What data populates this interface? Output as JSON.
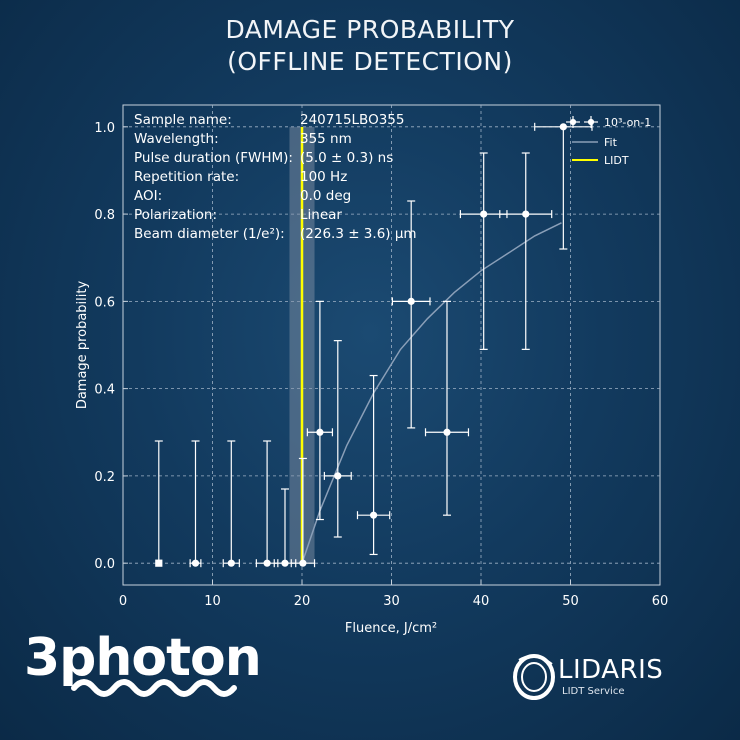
{
  "title_lines": [
    "DAMAGE PROBABILITY",
    "(OFFLINE DETECTION)"
  ],
  "info": [
    {
      "label": "Sample name:",
      "value": "240715LBO355"
    },
    {
      "label": "Wavelength:",
      "value": "355 nm"
    },
    {
      "label": "Pulse duration (FWHM):",
      "value": "(5.0 ± 0.3) ns"
    },
    {
      "label": "Repetition rate:",
      "value": "100 Hz"
    },
    {
      "label": "AOI:",
      "value": "0.0 deg"
    },
    {
      "label": "Polarization:",
      "value": "Linear"
    },
    {
      "label": "Beam diameter (1/e²):",
      "value": "(226.3 ± 3.6) µm"
    }
  ],
  "legend": {
    "points": "10³-on-1",
    "fit": "Fit",
    "lidt": "LIDT"
  },
  "colors": {
    "lidt": "#ffff00",
    "fit": "#8a9fb8",
    "points": "#ffffff",
    "lidt_band": "#8a97ab"
  },
  "logos": {
    "left": "3photon",
    "right_name": "LIDARIS",
    "right_sub": "LIDT Service"
  },
  "chart_data": {
    "type": "scatter",
    "xlabel": "Fluence, J/cm²",
    "ylabel": "Damage probability",
    "xlim": [
      0,
      60
    ],
    "ylim": [
      -0.05,
      1.05
    ],
    "xticks": [
      0,
      10,
      20,
      30,
      40,
      50,
      60
    ],
    "yticks": [
      "0.0",
      "0.2",
      "0.4",
      "0.6",
      "0.8",
      "1.0"
    ],
    "grid": true,
    "legend_position": "top-right",
    "series": [
      {
        "name": "10³-on-1",
        "points": [
          {
            "x": 4.0,
            "y": 0.0,
            "xerr": 0,
            "yerr_low": 0.0,
            "yerr_high": 0.28
          },
          {
            "x": 8.1,
            "y": 0.0,
            "xerr": 0.6,
            "yerr_low": 0.0,
            "yerr_high": 0.28
          },
          {
            "x": 12.1,
            "y": 0.0,
            "xerr": 0.9,
            "yerr_low": 0.0,
            "yerr_high": 0.28
          },
          {
            "x": 16.1,
            "y": 0.0,
            "xerr": 1.2,
            "yerr_low": 0.0,
            "yerr_high": 0.28
          },
          {
            "x": 18.1,
            "y": 0.0,
            "xerr": 1.2,
            "yerr_low": 0.0,
            "yerr_high": 0.17
          },
          {
            "x": 20.1,
            "y": 0.0,
            "xerr": 1.3,
            "yerr_low": 0.0,
            "yerr_high": 0.24
          },
          {
            "x": 22.0,
            "y": 0.3,
            "xerr": 1.4,
            "yerr_low": 0.2,
            "yerr_high": 0.3
          },
          {
            "x": 24.0,
            "y": 0.2,
            "xerr": 1.5,
            "yerr_low": 0.14,
            "yerr_high": 0.31
          },
          {
            "x": 28.0,
            "y": 0.11,
            "xerr": 1.8,
            "yerr_low": 0.09,
            "yerr_high": 0.32
          },
          {
            "x": 32.2,
            "y": 0.6,
            "xerr": 2.1,
            "yerr_low": 0.29,
            "yerr_high": 0.23
          },
          {
            "x": 36.2,
            "y": 0.3,
            "xerr": 2.4,
            "yerr_low": 0.19,
            "yerr_high": 0.3
          },
          {
            "x": 40.3,
            "y": 0.8,
            "xerr": 2.6,
            "yerr_low": 0.31,
            "yerr_high": 0.14
          },
          {
            "x": 45.0,
            "y": 0.8,
            "xerr": 2.9,
            "yerr_low": 0.31,
            "yerr_high": 0.14
          },
          {
            "x": 49.2,
            "y": 1.0,
            "xerr": 3.2,
            "yerr_low": 0.28,
            "yerr_high": 0.0
          }
        ]
      },
      {
        "name": "Fit",
        "points": [
          {
            "x": 20.0,
            "y": 0.0
          },
          {
            "x": 22.0,
            "y": 0.12
          },
          {
            "x": 25.0,
            "y": 0.27
          },
          {
            "x": 28.0,
            "y": 0.39
          },
          {
            "x": 31.0,
            "y": 0.49
          },
          {
            "x": 34.0,
            "y": 0.56
          },
          {
            "x": 37.0,
            "y": 0.62
          },
          {
            "x": 40.0,
            "y": 0.67
          },
          {
            "x": 43.0,
            "y": 0.71
          },
          {
            "x": 46.0,
            "y": 0.75
          },
          {
            "x": 49.0,
            "y": 0.78
          }
        ]
      }
    ],
    "lidt": {
      "value": 20.0,
      "uncertainty": 1.4
    }
  }
}
